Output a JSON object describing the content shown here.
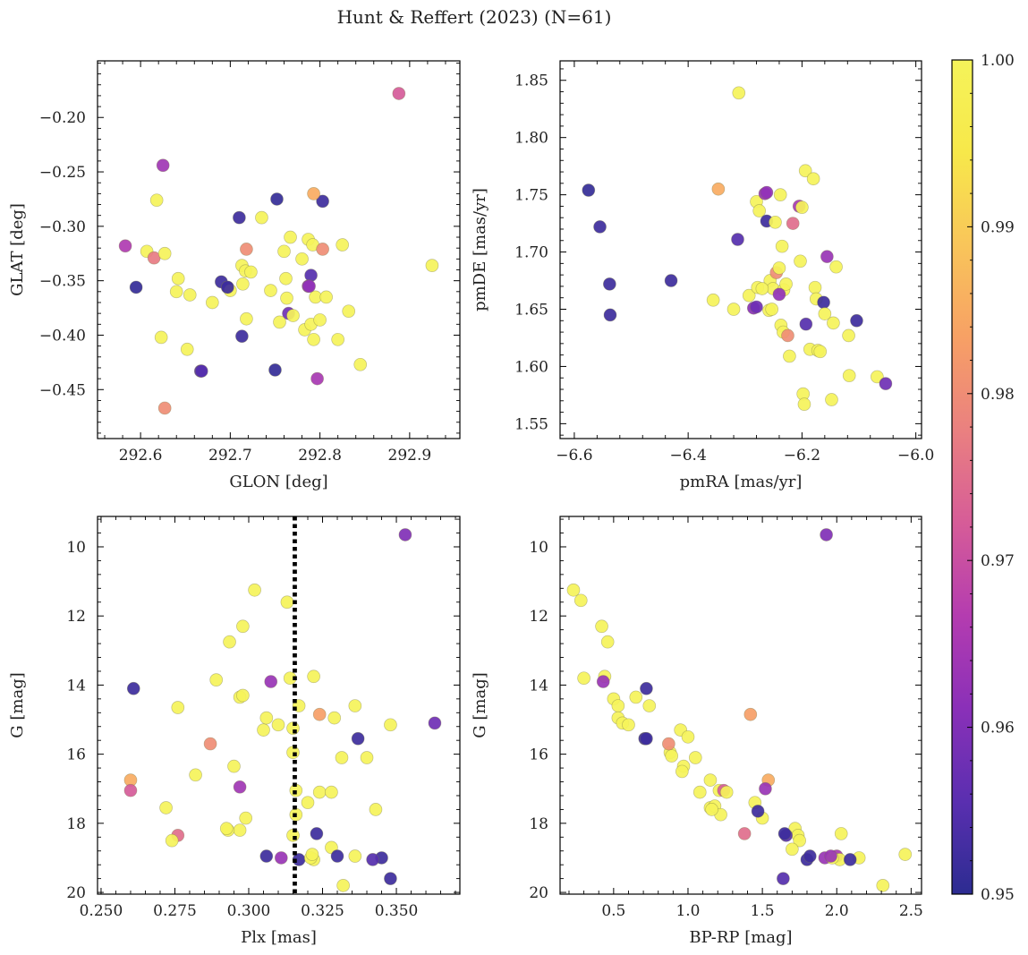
{
  "figure": {
    "title": "Hunt & Reffert (2023) (N=61)"
  },
  "colorbar": {
    "range": [
      0.95,
      1.0
    ],
    "ticks": [
      0.95,
      0.96,
      0.97,
      0.98,
      0.99,
      1.0
    ],
    "tick_labels": [
      "0.95",
      "0.96",
      "0.97",
      "0.98",
      "0.99",
      "1.00"
    ],
    "colormap": "plasma",
    "stops": [
      "#2c2c91",
      "#5a2fb0",
      "#8a30b8",
      "#b43cb0",
      "#d65c98",
      "#ea8080",
      "#f7a065",
      "#f9c55a",
      "#f7e84a",
      "#f5f35a"
    ]
  },
  "chart_data": [
    {
      "type": "scatter",
      "id": "radec",
      "title": "",
      "xlabel": "GLON [deg]",
      "ylabel": "GLAT [deg]",
      "xlim": [
        292.552,
        292.956
      ],
      "ylim": [
        -0.495,
        -0.148
      ],
      "y_inverted": false,
      "xticks": [
        292.6,
        292.7,
        292.8,
        292.9
      ],
      "xtick_labels": [
        "292.6",
        "292.7",
        "292.8",
        "292.9"
      ],
      "yticks": [
        -0.45,
        -0.4,
        -0.35,
        -0.3,
        -0.25,
        -0.2
      ],
      "ytick_labels": [
        "−0.45",
        "−0.40",
        "−0.35",
        "−0.30",
        "−0.25",
        "−0.20"
      ],
      "x": [
        292.888,
        292.625,
        292.618,
        292.583,
        292.595,
        292.607,
        292.615,
        292.627,
        292.64,
        292.652,
        292.642,
        292.623,
        292.655,
        292.667,
        292.68,
        292.69,
        292.697,
        292.7,
        292.71,
        292.713,
        292.714,
        292.717,
        292.718,
        292.723,
        292.713,
        292.735,
        292.745,
        292.76,
        292.762,
        292.763,
        292.765,
        292.767,
        292.77,
        292.78,
        292.783,
        292.787,
        292.79,
        292.79,
        292.792,
        292.793,
        292.795,
        292.797,
        292.8,
        292.803,
        292.807,
        292.82,
        292.825,
        292.832,
        292.845,
        292.925,
        292.75,
        292.752,
        292.787,
        292.793,
        292.803,
        292.627,
        292.668,
        292.788,
        292.697,
        292.718,
        292.755
      ],
      "y": [
        -0.178,
        -0.244,
        -0.276,
        -0.318,
        -0.356,
        -0.323,
        -0.329,
        -0.325,
        -0.36,
        -0.413,
        -0.348,
        -0.402,
        -0.363,
        -0.433,
        -0.37,
        -0.351,
        -0.356,
        -0.359,
        -0.292,
        -0.336,
        -0.353,
        -0.341,
        -0.385,
        -0.342,
        -0.401,
        -0.292,
        -0.359,
        -0.323,
        -0.348,
        -0.366,
        -0.38,
        -0.31,
        -0.382,
        -0.33,
        -0.395,
        -0.312,
        -0.345,
        -0.39,
        -0.317,
        -0.404,
        -0.365,
        -0.44,
        -0.386,
        -0.277,
        -0.365,
        -0.404,
        -0.317,
        -0.378,
        -0.427,
        -0.336,
        -0.432,
        -0.275,
        -0.355,
        -0.27,
        -0.321,
        -0.467,
        -0.433,
        -0.355,
        -0.356,
        -0.321,
        -0.388
      ],
      "c": [
        0.972,
        0.964,
        1.0,
        0.966,
        0.951,
        1.0,
        0.977,
        1.0,
        1.0,
        1.0,
        1.0,
        1.0,
        1.0,
        0.955,
        1.0,
        0.952,
        0.953,
        1.0,
        0.952,
        1.0,
        1.0,
        1.0,
        1.0,
        1.0,
        0.952,
        1.0,
        1.0,
        1.0,
        1.0,
        1.0,
        0.958,
        1.0,
        1.0,
        1.0,
        1.0,
        1.0,
        0.955,
        1.0,
        1.0,
        1.0,
        1.0,
        0.965,
        1.0,
        0.952,
        1.0,
        1.0,
        1.0,
        1.0,
        1.0,
        1.0,
        0.951,
        0.951,
        0.962,
        0.985,
        0.98,
        0.98,
        0.955,
        0.962,
        0.952,
        0.98,
        1.0
      ]
    },
    {
      "type": "scatter",
      "id": "propermotion",
      "title": "",
      "xlabel": "pmRA [mas/yr]",
      "ylabel": "pmDE [mas/yr]",
      "xlim": [
        -6.625,
        -5.99
      ],
      "ylim": [
        1.537,
        1.867
      ],
      "y_inverted": false,
      "xticks": [
        -6.6,
        -6.4,
        -6.2,
        -6.0
      ],
      "xtick_labels": [
        "−6.6",
        "−6.4",
        "−6.2",
        "−6.0"
      ],
      "yticks": [
        1.55,
        1.6,
        1.65,
        1.7,
        1.75,
        1.8,
        1.85
      ],
      "ytick_labels": [
        "1.55",
        "1.60",
        "1.65",
        "1.70",
        "1.75",
        "1.80",
        "1.85"
      ],
      "x": [
        -6.575,
        -6.555,
        -6.538,
        -6.537,
        -6.43,
        -6.347,
        -6.311,
        -6.313,
        -6.356,
        -6.32,
        -6.293,
        -6.285,
        -6.28,
        -6.278,
        -6.275,
        -6.265,
        -6.262,
        -6.258,
        -6.256,
        -6.253,
        -6.251,
        -6.247,
        -6.245,
        -6.24,
        -6.238,
        -6.237,
        -6.235,
        -6.233,
        -6.232,
        -6.228,
        -6.225,
        -6.222,
        -6.216,
        -6.205,
        -6.203,
        -6.2,
        -6.198,
        -6.196,
        -6.194,
        -6.193,
        -6.186,
        -6.18,
        -6.177,
        -6.175,
        -6.172,
        -6.168,
        -6.162,
        -6.16,
        -6.156,
        -6.148,
        -6.145,
        -6.14,
        -6.118,
        -6.117,
        -6.104,
        -6.068,
        -6.053,
        -6.28,
        -6.262,
        -6.24,
        -6.27
      ],
      "y": [
        1.754,
        1.722,
        1.672,
        1.645,
        1.675,
        1.755,
        1.839,
        1.711,
        1.658,
        1.65,
        1.662,
        1.651,
        1.744,
        1.669,
        1.736,
        1.751,
        1.727,
        1.649,
        1.675,
        1.65,
        1.668,
        1.726,
        1.682,
        1.686,
        1.75,
        1.636,
        1.705,
        1.63,
        1.667,
        1.672,
        1.627,
        1.609,
        1.725,
        1.74,
        1.692,
        1.739,
        1.576,
        1.567,
        1.771,
        1.637,
        1.615,
        1.764,
        1.669,
        1.659,
        1.614,
        1.613,
        1.656,
        1.646,
        1.696,
        1.571,
        1.638,
        1.687,
        1.627,
        1.592,
        1.64,
        1.591,
        1.585,
        1.652,
        1.752,
        1.663,
        1.668
      ],
      "c": [
        0.951,
        0.952,
        0.952,
        0.952,
        0.952,
        0.985,
        1.0,
        0.955,
        1.0,
        1.0,
        1.0,
        0.961,
        1.0,
        1.0,
        1.0,
        0.963,
        0.952,
        1.0,
        1.0,
        1.0,
        1.0,
        1.0,
        0.98,
        1.0,
        1.0,
        1.0,
        1.0,
        1.0,
        1.0,
        1.0,
        0.98,
        1.0,
        0.975,
        0.965,
        1.0,
        1.0,
        1.0,
        1.0,
        1.0,
        0.955,
        1.0,
        1.0,
        1.0,
        1.0,
        1.0,
        1.0,
        0.952,
        1.0,
        0.963,
        1.0,
        1.0,
        1.0,
        1.0,
        1.0,
        0.952,
        1.0,
        0.958,
        0.958,
        0.962,
        0.962,
        1.0
      ]
    },
    {
      "type": "scatter",
      "id": "parallax",
      "title": "",
      "xlabel": "Plx [mas]",
      "ylabel": "G [mag]",
      "xlim": [
        0.2488,
        0.3715
      ],
      "ylim": [
        20.05,
        9.12
      ],
      "y_inverted": true,
      "xticks": [
        0.25,
        0.275,
        0.3,
        0.325,
        0.35
      ],
      "xtick_labels": [
        "0.250",
        "0.275",
        "0.300",
        "0.325",
        "0.350"
      ],
      "yticks": [
        10,
        12,
        14,
        16,
        18,
        20
      ],
      "ytick_labels": [
        "10",
        "12",
        "14",
        "16",
        "18",
        "20"
      ],
      "vline": {
        "x": 0.3156,
        "style": "dotted",
        "color": "#000000"
      },
      "x": [
        0.353,
        0.302,
        0.313,
        0.298,
        0.2935,
        0.297,
        0.3075,
        0.314,
        0.322,
        0.317,
        0.289,
        0.298,
        0.363,
        0.276,
        0.336,
        0.348,
        0.31,
        0.315,
        0.324,
        0.329,
        0.305,
        0.306,
        0.337,
        0.287,
        0.34,
        0.3315,
        0.282,
        0.26,
        0.26,
        0.324,
        0.297,
        0.328,
        0.316,
        0.316,
        0.272,
        0.323,
        0.297,
        0.293,
        0.328,
        0.343,
        0.315,
        0.276,
        0.274,
        0.2925,
        0.295,
        0.306,
        0.336,
        0.317,
        0.322,
        0.311,
        0.33,
        0.321,
        0.345,
        0.332,
        0.342,
        0.261,
        0.3215,
        0.299,
        0.315,
        0.32,
        0.348
      ],
      "y": [
        9.65,
        11.25,
        11.6,
        12.3,
        12.75,
        14.35,
        13.9,
        13.8,
        13.75,
        14.6,
        13.85,
        14.3,
        15.1,
        14.65,
        14.6,
        15.15,
        15.15,
        15.25,
        14.85,
        14.95,
        15.3,
        14.95,
        15.55,
        15.7,
        16.1,
        16.1,
        16.6,
        16.75,
        17.05,
        17.1,
        16.95,
        17.1,
        17.05,
        17.75,
        17.55,
        18.3,
        18.2,
        18.2,
        18.7,
        17.6,
        18.35,
        18.35,
        18.5,
        18.15,
        16.35,
        18.95,
        18.95,
        19.05,
        19.05,
        19.0,
        18.95,
        19.0,
        19.0,
        19.8,
        19.05,
        14.1,
        18.9,
        17.85,
        15.95,
        17.4,
        19.6
      ],
      "c": [
        0.96,
        1.0,
        1.0,
        1.0,
        1.0,
        1.0,
        0.963,
        1.0,
        1.0,
        1.0,
        1.0,
        1.0,
        0.958,
        1.0,
        1.0,
        1.0,
        1.0,
        1.0,
        0.983,
        1.0,
        1.0,
        1.0,
        0.952,
        0.98,
        1.0,
        1.0,
        1.0,
        0.985,
        0.972,
        1.0,
        0.964,
        1.0,
        1.0,
        1.0,
        1.0,
        0.952,
        1.0,
        1.0,
        1.0,
        1.0,
        1.0,
        0.975,
        1.0,
        1.0,
        1.0,
        0.952,
        1.0,
        0.952,
        1.0,
        0.963,
        0.952,
        1.0,
        0.952,
        1.0,
        0.955,
        0.952,
        1.0,
        1.0,
        1.0,
        1.0,
        0.952
      ]
    },
    {
      "type": "scatter",
      "id": "cmd",
      "title": "",
      "xlabel": "BP-RP [mag]",
      "ylabel": "G [mag]",
      "xlim": [
        0.14,
        2.57
      ],
      "ylim": [
        20.05,
        9.12
      ],
      "y_inverted": true,
      "xticks": [
        0.5,
        1.0,
        1.5,
        2.0,
        2.5
      ],
      "xtick_labels": [
        "0.5",
        "1.0",
        "1.5",
        "2.0",
        "2.5"
      ],
      "yticks": [
        10,
        12,
        14,
        16,
        18,
        20
      ],
      "ytick_labels": [
        "10",
        "12",
        "14",
        "16",
        "18",
        "20"
      ],
      "x": [
        1.93,
        0.23,
        0.28,
        0.42,
        0.46,
        0.3,
        0.44,
        0.43,
        0.5,
        0.53,
        0.53,
        0.56,
        0.6,
        0.72,
        0.65,
        0.74,
        0.71,
        0.95,
        0.88,
        0.97,
        1.0,
        0.89,
        0.96,
        1.05,
        1.42,
        1.15,
        1.21,
        1.24,
        1.26,
        1.08,
        1.15,
        1.54,
        1.52,
        1.45,
        1.5,
        1.18,
        1.22,
        1.16,
        1.72,
        1.74,
        1.75,
        1.7,
        2.03,
        1.66,
        1.64,
        1.8,
        1.82,
        1.92,
        2.0,
        2.02,
        2.15,
        2.46,
        2.31,
        1.97,
        1.65,
        1.47,
        1.38,
        1.96,
        2.09,
        0.87,
        0.72
      ],
      "y": [
        9.65,
        11.25,
        11.55,
        12.3,
        12.75,
        13.8,
        13.75,
        13.9,
        14.4,
        14.6,
        14.95,
        15.1,
        15.15,
        14.1,
        14.35,
        14.6,
        15.55,
        15.3,
        15.95,
        16.35,
        15.5,
        16.05,
        16.5,
        16.1,
        14.85,
        16.75,
        17.05,
        17.05,
        17.1,
        17.1,
        17.55,
        16.75,
        17.0,
        17.4,
        17.85,
        17.5,
        17.75,
        17.6,
        18.15,
        18.35,
        18.5,
        18.75,
        18.3,
        18.35,
        19.6,
        19.05,
        18.95,
        19.0,
        18.95,
        19.05,
        19.0,
        18.9,
        19.8,
        19.0,
        18.3,
        17.65,
        18.3,
        18.95,
        19.05,
        15.7,
        15.55
      ],
      "c": [
        0.96,
        1.0,
        1.0,
        1.0,
        1.0,
        1.0,
        1.0,
        0.963,
        1.0,
        1.0,
        1.0,
        1.0,
        1.0,
        0.952,
        1.0,
        1.0,
        0.952,
        1.0,
        1.0,
        1.0,
        1.0,
        1.0,
        1.0,
        1.0,
        0.983,
        1.0,
        1.0,
        0.972,
        1.0,
        1.0,
        1.0,
        0.985,
        0.963,
        1.0,
        1.0,
        1.0,
        1.0,
        1.0,
        1.0,
        1.0,
        1.0,
        1.0,
        1.0,
        0.955,
        0.955,
        0.952,
        0.952,
        0.963,
        0.965,
        1.0,
        1.0,
        1.0,
        1.0,
        1.0,
        0.952,
        0.952,
        0.975,
        0.963,
        0.952,
        0.98,
        0.952
      ]
    }
  ]
}
